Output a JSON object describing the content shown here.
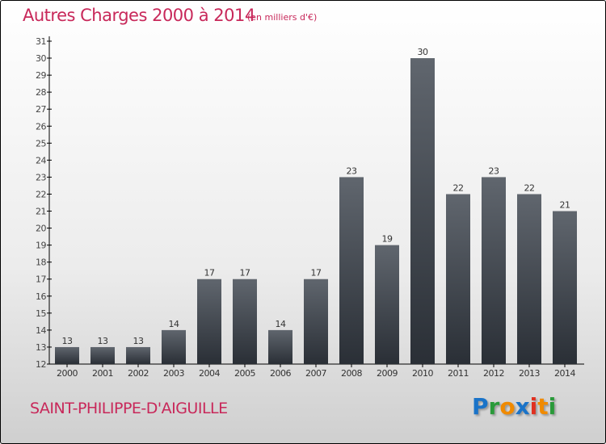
{
  "header": {
    "title": "Autres Charges 2000 à 2014",
    "subtitle": "(en milliers d'€)"
  },
  "footer": {
    "town": "SAINT-PHILIPPE-D'AIGUILLE",
    "logo": "Proxiti"
  },
  "chart_data": {
    "type": "bar",
    "title": "Autres Charges 2000 à 2014",
    "subtitle": "(en milliers d'€)",
    "xlabel": "",
    "ylabel": "",
    "categories": [
      "2000",
      "2001",
      "2002",
      "2003",
      "2004",
      "2005",
      "2006",
      "2007",
      "2008",
      "2009",
      "2010",
      "2011",
      "2012",
      "2013",
      "2014"
    ],
    "values": [
      13,
      13,
      13,
      14,
      17,
      17,
      14,
      17,
      23,
      19,
      30,
      22,
      23,
      22,
      21
    ],
    "ylim": [
      12,
      31
    ],
    "yticks": [
      12,
      13,
      14,
      15,
      16,
      17,
      18,
      19,
      20,
      21,
      22,
      23,
      24,
      25,
      26,
      27,
      28,
      29,
      30,
      31
    ],
    "grid": false,
    "colors": {
      "bar_top": "#60666e",
      "bar_bottom": "#2a2f36",
      "accent": "#c8285a"
    }
  }
}
